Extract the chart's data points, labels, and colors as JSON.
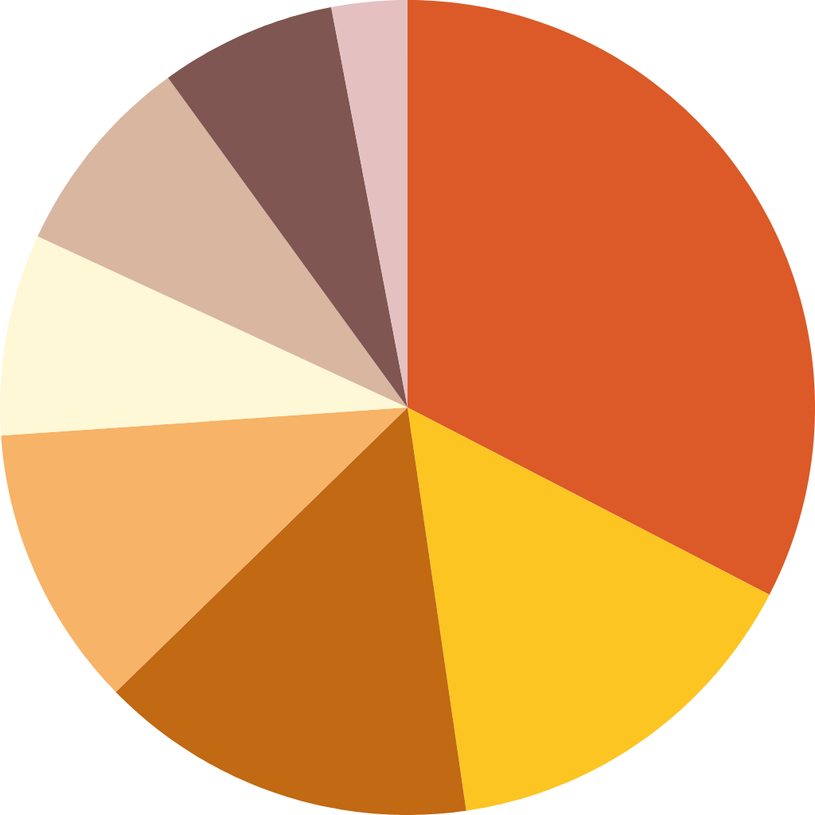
{
  "chart_data": {
    "type": "pie",
    "categories": [
      null,
      null,
      null,
      null,
      null,
      null,
      null,
      null
    ],
    "values": [
      32.6,
      15.1,
      15.0,
      11.2,
      8.0,
      8.1,
      7.0,
      3.0
    ],
    "colors": [
      "#db5a27",
      "#fcc522",
      "#c16913",
      "#f7b367",
      "#fef8d6",
      "#d9b69f",
      "#7f5651",
      "#e4c1c0"
    ]
  }
}
